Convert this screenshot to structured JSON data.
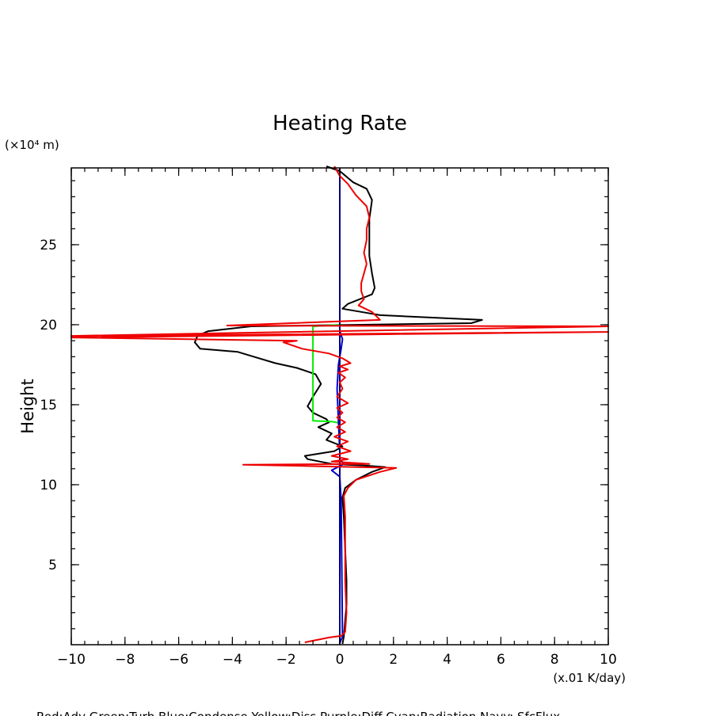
{
  "chart_data": {
    "type": "line",
    "title": "Heating Rate",
    "xlabel": "(x.01 K/day)",
    "ylabel": "Height",
    "yunit": "(×10⁴ m)",
    "xlim": [
      -10,
      10
    ],
    "ylim": [
      0,
      29.8
    ],
    "xticks": [
      -10,
      -8,
      -6,
      -4,
      -2,
      0,
      2,
      4,
      6,
      8,
      10
    ],
    "yticks": [
      5,
      10,
      15,
      20,
      25
    ],
    "grid": false,
    "legend_text": "Red:Adv  Green:Turb  Blue:Condense  Yellow:Diss  Purple:Diff  Cyan:Radiation  Navy: SfcFlux",
    "series": [
      {
        "color": "#000000",
        "points": [
          [
            0.1,
            0.05
          ],
          [
            0.15,
            0.5
          ],
          [
            0.2,
            1.5
          ],
          [
            0.25,
            2.5
          ],
          [
            0.25,
            4
          ],
          [
            0.2,
            6
          ],
          [
            0.15,
            8
          ],
          [
            0.1,
            9.2
          ],
          [
            0.2,
            9.8
          ],
          [
            0.6,
            10.3
          ],
          [
            1.2,
            10.8
          ],
          [
            1.7,
            11.1
          ],
          [
            0.9,
            11.2
          ],
          [
            -0.3,
            11.3
          ],
          [
            -1.2,
            11.6
          ],
          [
            -1.3,
            11.8
          ],
          [
            -0.2,
            12.1
          ],
          [
            0.1,
            12.4
          ],
          [
            -0.5,
            12.8
          ],
          [
            -0.3,
            13.2
          ],
          [
            -0.8,
            13.6
          ],
          [
            -0.4,
            13.9
          ],
          [
            -0.5,
            14.1
          ],
          [
            -1.0,
            14.5
          ],
          [
            -1.2,
            14.9
          ],
          [
            -1.0,
            15.5
          ],
          [
            -0.7,
            16.3
          ],
          [
            -0.9,
            16.9
          ],
          [
            -1.6,
            17.3
          ],
          [
            -2.4,
            17.6
          ],
          [
            -3.0,
            17.9
          ],
          [
            -3.8,
            18.3
          ],
          [
            -5.2,
            18.5
          ],
          [
            -5.4,
            18.9
          ],
          [
            -5.3,
            19.3
          ],
          [
            -4.9,
            19.6
          ],
          [
            -3.3,
            19.9
          ],
          [
            4.9,
            20.1
          ],
          [
            5.3,
            20.3
          ],
          [
            1.5,
            20.6
          ],
          [
            0.8,
            20.8
          ],
          [
            0.1,
            21.0
          ],
          [
            0.3,
            21.3
          ],
          [
            1.2,
            21.9
          ],
          [
            1.3,
            22.3
          ],
          [
            1.2,
            23.2
          ],
          [
            1.1,
            24.3
          ],
          [
            1.1,
            25.4
          ],
          [
            1.1,
            26.6
          ],
          [
            1.2,
            27.8
          ],
          [
            1.0,
            28.5
          ],
          [
            0.5,
            28.9
          ],
          [
            0.0,
            29.6
          ],
          [
            -0.5,
            29.9
          ]
        ]
      },
      {
        "color": "#00ee00",
        "points": [
          [
            0,
            13.85
          ],
          [
            -0.3,
            13.95
          ],
          [
            -1.0,
            14.0
          ],
          [
            -1.0,
            17.0
          ],
          [
            -1.0,
            19.9
          ],
          [
            0,
            20.0
          ]
        ]
      },
      {
        "color": "#0000cc",
        "points": [
          [
            0,
            0.1
          ],
          [
            0.1,
            0.5
          ],
          [
            0.05,
            9
          ],
          [
            0,
            10.5
          ],
          [
            -0.3,
            10.9
          ],
          [
            0.15,
            11.3
          ],
          [
            0,
            11.6
          ],
          [
            0,
            12
          ],
          [
            -0.05,
            14
          ],
          [
            -0.1,
            16
          ],
          [
            -0.05,
            17.5
          ],
          [
            0.05,
            18.5
          ],
          [
            0.1,
            19.1
          ],
          [
            0.0,
            19.6
          ],
          [
            0,
            20.5
          ],
          [
            0,
            29.8
          ]
        ]
      },
      {
        "color": "#000080",
        "points": [
          [
            0,
            0
          ],
          [
            0,
            29.8
          ]
        ]
      },
      {
        "color": "#ee0000",
        "points": [
          [
            -1.3,
            0.15
          ],
          [
            -0.4,
            0.45
          ],
          [
            0.05,
            0.55
          ],
          [
            0.2,
            0.8
          ],
          [
            0.25,
            2
          ],
          [
            0.2,
            4
          ],
          [
            0.2,
            6
          ],
          [
            0.2,
            8
          ],
          [
            0.15,
            9.3
          ],
          [
            0.3,
            9.8
          ],
          [
            0.6,
            10.3
          ],
          [
            1.5,
            10.8
          ],
          [
            2.1,
            11.05
          ],
          [
            -3.6,
            11.25
          ],
          [
            1.1,
            11.3
          ],
          [
            -0.3,
            11.45
          ],
          [
            0.3,
            11.6
          ],
          [
            -0.3,
            11.8
          ],
          [
            0.4,
            12.1
          ],
          [
            -0.1,
            12.4
          ],
          [
            0.3,
            12.7
          ],
          [
            -0.2,
            13.0
          ],
          [
            0.2,
            13.3
          ],
          [
            -0.1,
            13.6
          ],
          [
            0.2,
            13.9
          ],
          [
            -0.1,
            14.2
          ],
          [
            0.1,
            14.5
          ],
          [
            -0.1,
            14.8
          ],
          [
            0.3,
            15.1
          ],
          [
            -0.1,
            15.5
          ],
          [
            0.1,
            16
          ],
          [
            0,
            16.4
          ],
          [
            0.2,
            16.7
          ],
          [
            -0.05,
            17.0
          ],
          [
            0.3,
            17.2
          ],
          [
            0.0,
            17.4
          ],
          [
            0.4,
            17.6
          ],
          [
            0.1,
            17.9
          ],
          [
            -0.4,
            18.2
          ],
          [
            -1.4,
            18.5
          ],
          [
            -2.1,
            18.9
          ],
          [
            -1.6,
            19.0
          ],
          [
            -10,
            19.2
          ],
          [
            10,
            19.55
          ],
          [
            -10,
            19.3
          ],
          [
            10,
            19.9
          ],
          [
            -4.2,
            19.95
          ],
          [
            1.5,
            20.3
          ],
          [
            1.2,
            20.8
          ],
          [
            0.7,
            21.2
          ],
          [
            0.9,
            21.6
          ],
          [
            0.8,
            22.1
          ],
          [
            0.8,
            22.6
          ],
          [
            0.9,
            23.2
          ],
          [
            1.0,
            23.8
          ],
          [
            0.9,
            24.5
          ],
          [
            1.0,
            25.3
          ],
          [
            1.0,
            26
          ],
          [
            1.1,
            26.7
          ],
          [
            1.0,
            27.4
          ],
          [
            0.6,
            28.1
          ],
          [
            0.3,
            28.8
          ],
          [
            0.0,
            29.3
          ],
          [
            -0.2,
            29.9
          ]
        ]
      }
    ]
  }
}
